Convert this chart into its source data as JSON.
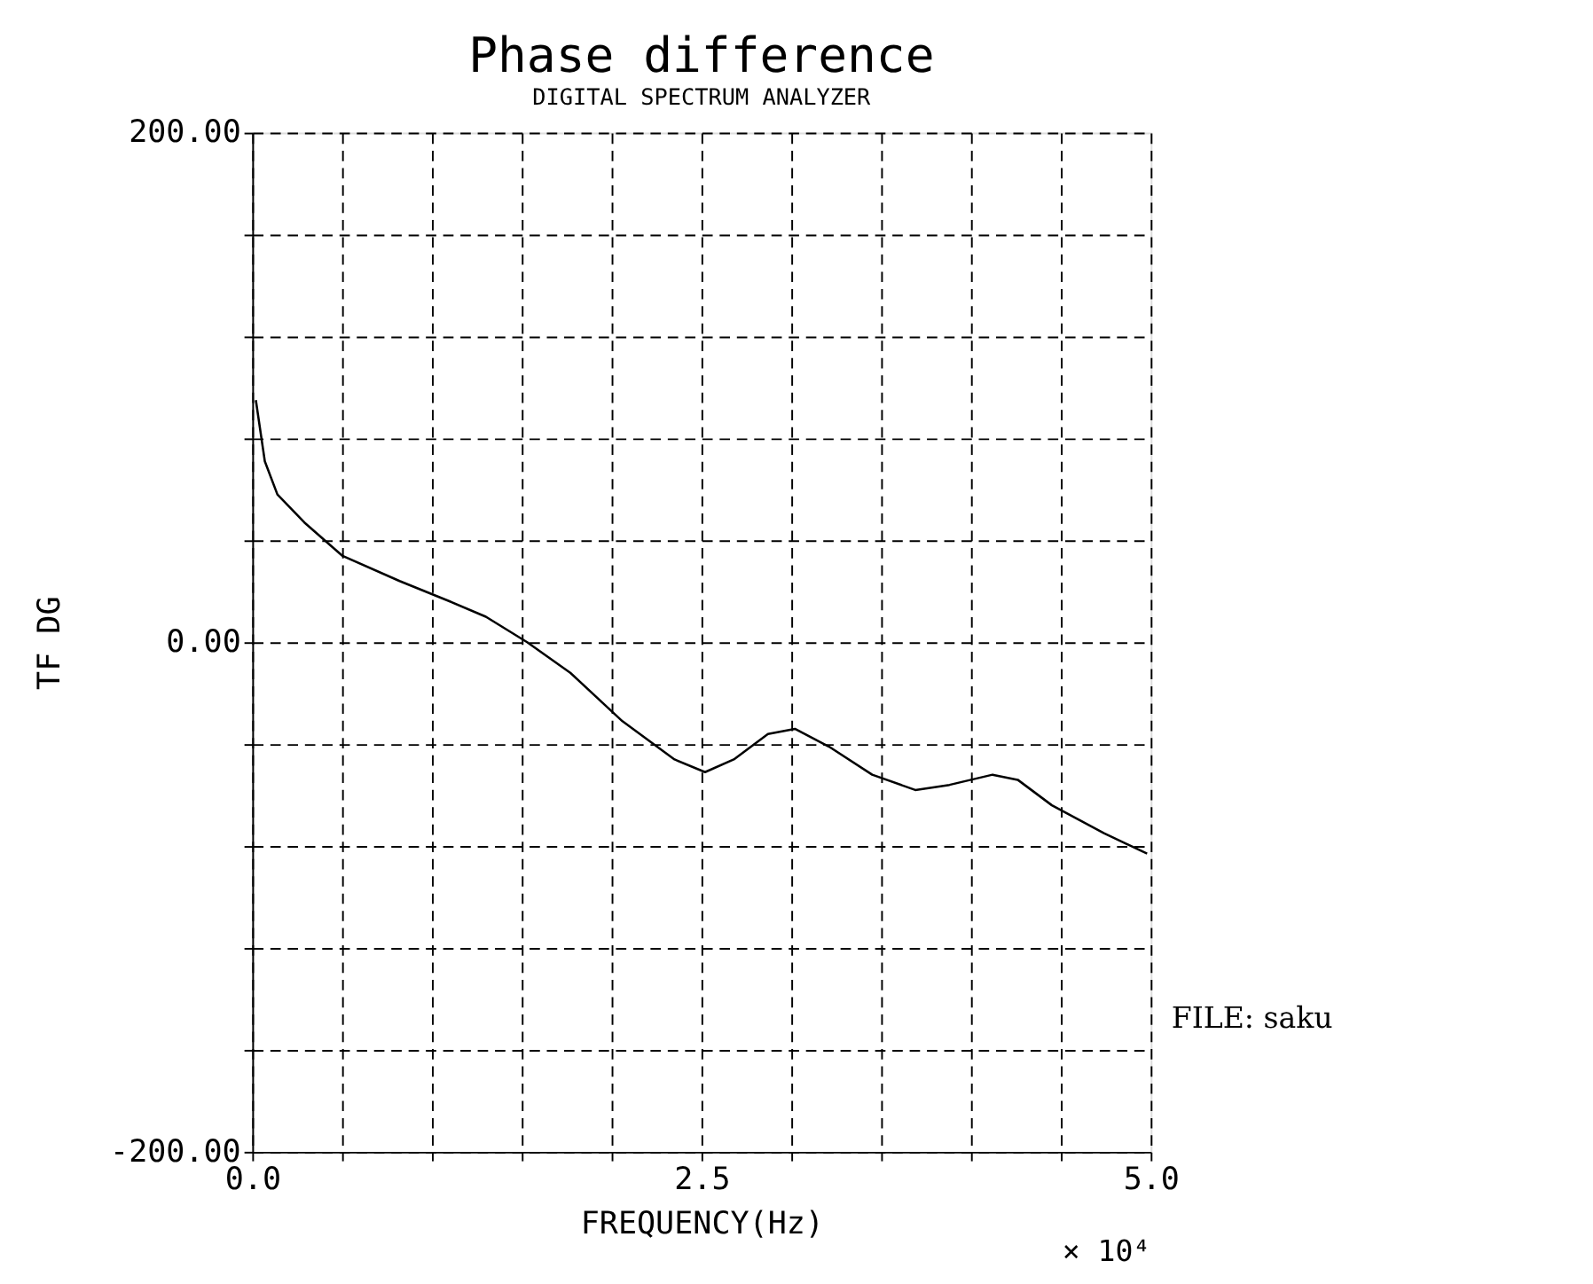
{
  "chart_data": {
    "type": "line",
    "title": "Phase difference",
    "subtitle": "DIGITAL SPECTRUM ANALYZER",
    "xlabel": "FREQUENCY(Hz)",
    "ylabel": "TF DG",
    "x": [
      0.02,
      0.07,
      0.14,
      0.29,
      0.5,
      0.82,
      1.1,
      1.3,
      1.53,
      1.77,
      2.06,
      2.35,
      2.52,
      2.68,
      2.87,
      3.02,
      3.21,
      3.45,
      3.69,
      3.88,
      4.12,
      4.26,
      4.45,
      4.74,
      4.98
    ],
    "series": [
      {
        "color": "#000000",
        "values": [
          95,
          71,
          58,
          47,
          34,
          24,
          16,
          10,
          0,
          -12,
          -31,
          -46,
          -51,
          -46,
          -36,
          -34,
          -41,
          -52,
          -58,
          -56,
          -52,
          -54,
          -64,
          -75,
          -83
        ]
      }
    ],
    "xlim": [
      0,
      5
    ],
    "ylim": [
      -200,
      200
    ],
    "xticks": [
      {
        "value": 0,
        "label": "0.0"
      },
      {
        "value": 0.5,
        "label": null
      },
      {
        "value": 1,
        "label": null
      },
      {
        "value": 1.5,
        "label": null
      },
      {
        "value": 2,
        "label": null
      },
      {
        "value": 2.5,
        "label": "2.5"
      },
      {
        "value": 3,
        "label": null
      },
      {
        "value": 3.5,
        "label": null
      },
      {
        "value": 4,
        "label": null
      },
      {
        "value": 4.5,
        "label": null
      },
      {
        "value": 5,
        "label": "5.0"
      }
    ],
    "yticks": [
      {
        "value": -200,
        "label": "-200.00"
      },
      {
        "value": -160,
        "label": null
      },
      {
        "value": -120,
        "label": null
      },
      {
        "value": -80,
        "label": null
      },
      {
        "value": -40,
        "label": null
      },
      {
        "value": 0,
        "label": "0.00"
      },
      {
        "value": 40,
        "label": null
      },
      {
        "value": 80,
        "label": null
      },
      {
        "value": 120,
        "label": null
      },
      {
        "value": 160,
        "label": null
      },
      {
        "value": 200,
        "label": "200.00"
      }
    ],
    "grid": true,
    "line_style": "solid",
    "marker": "none",
    "annotations": [
      "× 10⁴",
      "FILE: saku"
    ]
  }
}
